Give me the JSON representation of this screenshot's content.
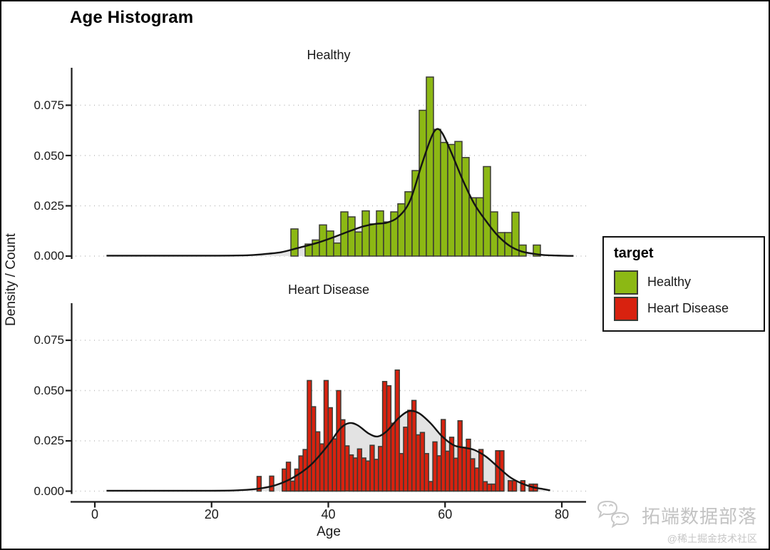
{
  "title": "Age Histogram",
  "axes": {
    "x_label": "Age",
    "y_label": "Density / Count",
    "x_tick_labels": [
      "0",
      "20",
      "40",
      "60",
      "80"
    ],
    "y_tick_labels": [
      "0.075",
      "0.050",
      "0.025",
      "0.000"
    ],
    "x_ticks": [
      0,
      20,
      40,
      60,
      80
    ],
    "y_ticks": [
      0.075,
      0.05,
      0.025,
      0
    ]
  },
  "legend": {
    "title": "target",
    "items": [
      {
        "label": "Healthy",
        "color": "#8CB814"
      },
      {
        "label": "Heart Disease",
        "color": "#D8220F"
      }
    ]
  },
  "style": {
    "bar_stroke": "#3b3b35",
    "curve_color": "#141414",
    "curve_fill": "#e3e3e3",
    "grid_color": "#bbbbbb",
    "axis_color": "#1a1a1a"
  },
  "watermark": {
    "icon": "wechat-chat-bubbles",
    "text": "拓端数据部落",
    "subtext": "@稀土掘金技术社区"
  },
  "chart_data": [
    {
      "type": "bar",
      "subtype": "histogram-with-density",
      "facet": "Healthy",
      "color": "#8CB814",
      "xlabel": "Age",
      "ylabel": "Density / Count",
      "xlim": [
        0,
        80
      ],
      "ylim": [
        0,
        0.092
      ],
      "grid": "dotted-horizontal",
      "yticks": [
        0,
        0.025,
        0.05,
        0.075
      ],
      "bin_start": 33.59,
      "bin_width": 1.2214,
      "bar_densities": [
        0.0135,
        0,
        0.006,
        0.008,
        0.0155,
        0.0125,
        0.0065,
        0.022,
        0.0195,
        0.012,
        0.0225,
        0.016,
        0.0225,
        0.017,
        0.022,
        0.026,
        0.032,
        0.0425,
        0.0725,
        0.089,
        0.063,
        0.0565,
        0.0555,
        0.057,
        0.049,
        0.029,
        0.029,
        0.0445,
        0.022,
        0.0117,
        0.0117,
        0.0218,
        0.0055,
        0,
        0.0055
      ],
      "density_curve_points": [
        [
          2,
          0.0002
        ],
        [
          20,
          0.0002
        ],
        [
          26,
          0.0004
        ],
        [
          29,
          0.001
        ],
        [
          32,
          0.002
        ],
        [
          35,
          0.0042
        ],
        [
          38,
          0.0065
        ],
        [
          41,
          0.0095
        ],
        [
          44,
          0.0128
        ],
        [
          46,
          0.0148
        ],
        [
          48,
          0.016
        ],
        [
          50,
          0.0166
        ],
        [
          52,
          0.0195
        ],
        [
          54,
          0.0275
        ],
        [
          56,
          0.0455
        ],
        [
          57.5,
          0.058
        ],
        [
          58.5,
          0.063
        ],
        [
          59.5,
          0.0612
        ],
        [
          61,
          0.052
        ],
        [
          63,
          0.038
        ],
        [
          65,
          0.026
        ],
        [
          67,
          0.0175
        ],
        [
          69,
          0.0103
        ],
        [
          71,
          0.0052
        ],
        [
          73,
          0.0024
        ],
        [
          75,
          0.0012
        ],
        [
          77,
          0.0005
        ],
        [
          80,
          0.0002
        ],
        [
          82,
          0.0001
        ]
      ]
    },
    {
      "type": "bar",
      "subtype": "histogram-with-density",
      "facet": "Heart Disease",
      "color": "#D8220F",
      "xlabel": "Age",
      "ylabel": "Density / Count",
      "xlim": [
        0,
        80
      ],
      "ylim": [
        0,
        0.092
      ],
      "grid": "dotted-horizontal",
      "yticks": [
        0,
        0.025,
        0.05,
        0.075
      ],
      "bin_start": 27.79,
      "bin_width": 0.717,
      "bar_densities": [
        0.0073,
        0,
        0,
        0.0075,
        0,
        0,
        0.011,
        0.0144,
        0.005,
        0.011,
        0.0175,
        0.0207,
        0.055,
        0.042,
        0.0295,
        0.0235,
        0.055,
        0.0415,
        0.026,
        0.05,
        0.0355,
        0.0225,
        0.018,
        0.0165,
        0.021,
        0.0165,
        0.015,
        0.0228,
        0.0158,
        0.0222,
        0.0545,
        0.0524,
        0.0338,
        0.0602,
        0.0187,
        0.0318,
        0.0402,
        0.0451,
        0.028,
        0.0292,
        0.0187,
        0.0048,
        0.0245,
        0.0176,
        0.0356,
        0.0199,
        0.0268,
        0.0164,
        0.035,
        0.0218,
        0.0258,
        0.0161,
        0.0115,
        0.0207,
        0.0047,
        0.0035,
        0.0035,
        0.0201,
        0.0201,
        0,
        0.0052,
        0.0052,
        0,
        0.0052,
        0,
        0.0035,
        0.0035
      ],
      "density_curve_points": [
        [
          2,
          0.0002
        ],
        [
          20,
          0.0002
        ],
        [
          25,
          0.0005
        ],
        [
          28,
          0.0012
        ],
        [
          31,
          0.003
        ],
        [
          34,
          0.0068
        ],
        [
          37,
          0.013
        ],
        [
          40,
          0.023
        ],
        [
          42,
          0.031
        ],
        [
          43.5,
          0.0338
        ],
        [
          45,
          0.0328
        ],
        [
          47,
          0.0285
        ],
        [
          48.5,
          0.0272
        ],
        [
          50,
          0.0298
        ],
        [
          52,
          0.0362
        ],
        [
          53.8,
          0.0398
        ],
        [
          55.5,
          0.0388
        ],
        [
          57.5,
          0.0338
        ],
        [
          59.5,
          0.0272
        ],
        [
          61.5,
          0.0228
        ],
        [
          63.5,
          0.0215
        ],
        [
          65,
          0.0205
        ],
        [
          67,
          0.0172
        ],
        [
          69,
          0.0122
        ],
        [
          71,
          0.0072
        ],
        [
          73,
          0.004
        ],
        [
          75,
          0.002
        ],
        [
          76.5,
          0.0012
        ],
        [
          78,
          0.0004
        ]
      ]
    }
  ]
}
